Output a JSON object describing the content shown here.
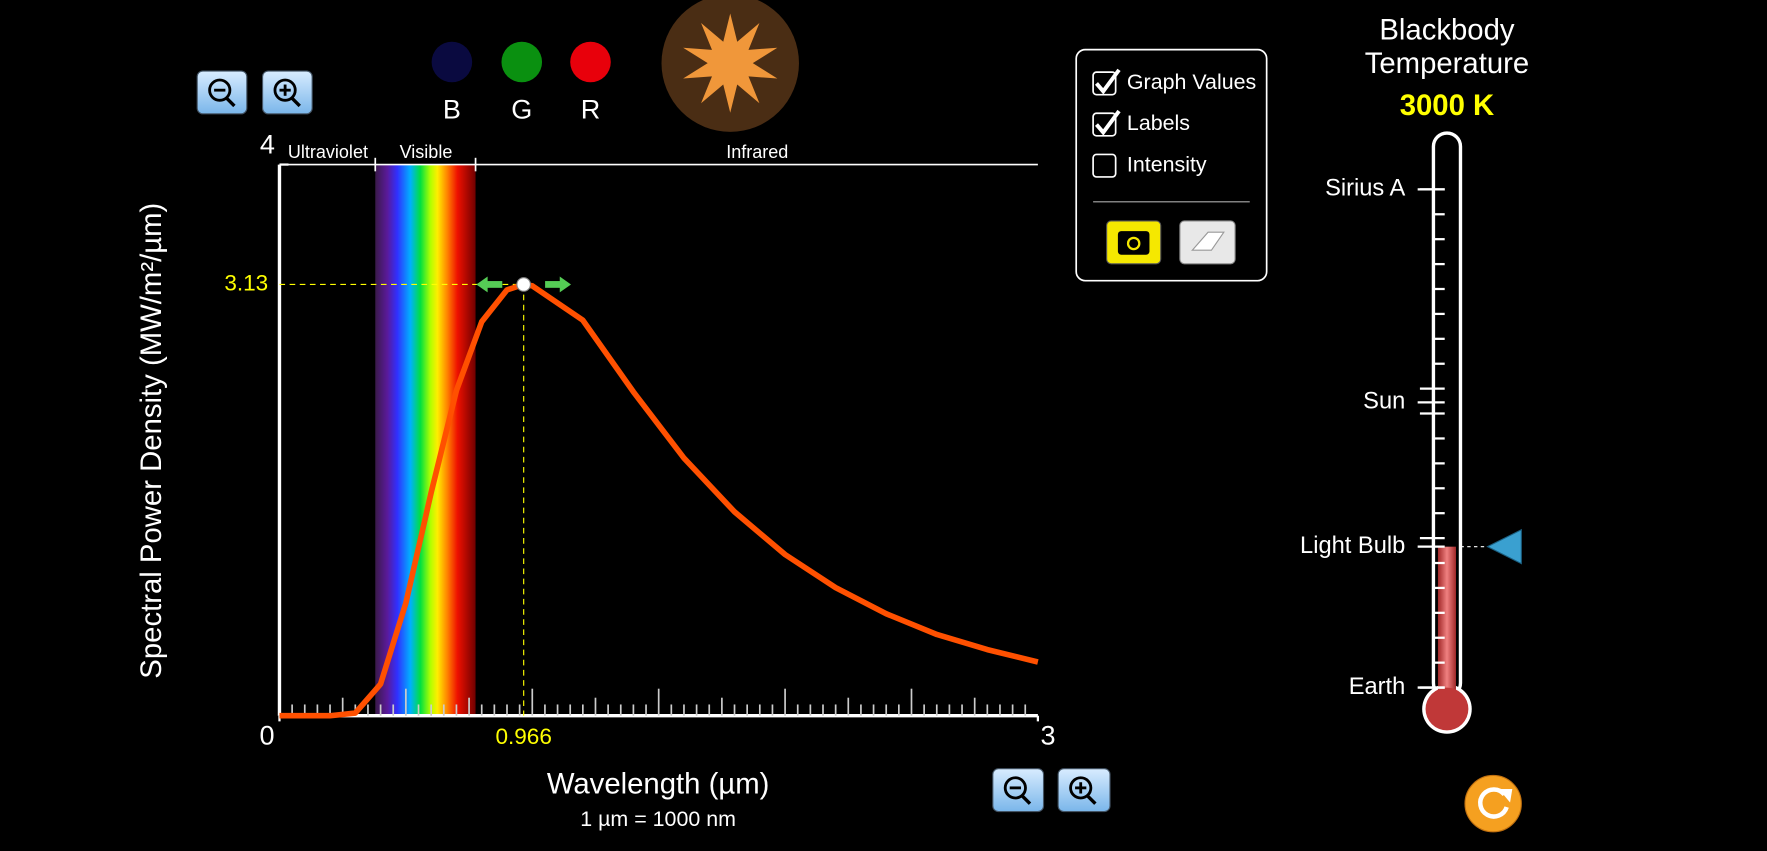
{
  "color_indicators": [
    "B",
    "G",
    "R"
  ],
  "bands": [
    "Ultraviolet",
    "Visible",
    "Infrared"
  ],
  "chart_data": {
    "type": "line",
    "ylabel": "Spectral Power Density (MW/m²/µm)",
    "xlabel": "Wavelength (µm)",
    "xnote": "1 µm  =  1000 nm",
    "xlim": [
      0,
      3
    ],
    "ylim": [
      0,
      4
    ],
    "xticks": [
      0,
      3
    ],
    "yticks": [
      4
    ],
    "x": [
      0,
      0.1,
      0.2,
      0.3,
      0.4,
      0.5,
      0.6,
      0.7,
      0.8,
      0.9,
      0.966,
      1.0,
      1.2,
      1.4,
      1.6,
      1.8,
      2.0,
      2.2,
      2.4,
      2.6,
      2.8,
      3.0
    ],
    "series": [
      {
        "color": "#ff5000",
        "values": [
          0,
          0,
          0,
          0.02,
          0.23,
          0.82,
          1.62,
          2.36,
          2.86,
          3.09,
          3.13,
          3.12,
          2.87,
          2.35,
          1.87,
          1.48,
          1.17,
          0.93,
          0.74,
          0.59,
          0.48,
          0.39
        ]
      }
    ],
    "peak": {
      "x": 0.966,
      "y": 3.13
    }
  },
  "options": [
    {
      "label": "Graph Values",
      "checked": true
    },
    {
      "label": "Labels",
      "checked": true
    },
    {
      "label": "Intensity",
      "checked": false
    }
  ],
  "thermometer": {
    "title": [
      "Blackbody",
      "Temperature"
    ],
    "temperature": "3000 K",
    "labels": [
      "Sirius A",
      "Sun",
      "Light Bulb",
      "Earth"
    ]
  }
}
